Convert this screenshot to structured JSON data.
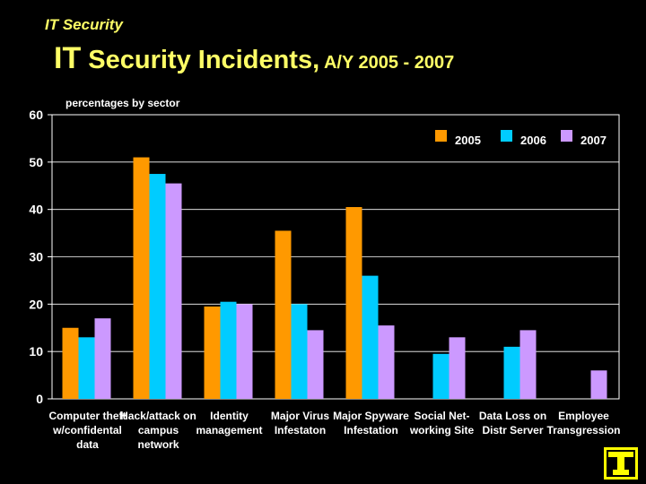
{
  "slide": {
    "kicker": "IT Security",
    "title_part1": "IT",
    "title_part2": " Security Incidents",
    "title_part3": ",",
    "title_part4": " A/Y 2005 - 2007"
  },
  "chart_data": {
    "type": "bar",
    "subtitle": "percentages by sector",
    "categories": [
      [
        "Computer theft",
        "w/confidental",
        "data"
      ],
      [
        "Hack/attack on",
        "campus",
        "network"
      ],
      [
        "Identity",
        "management"
      ],
      [
        "Major Virus",
        "Infestaton"
      ],
      [
        "Major Spyware",
        "Infestation"
      ],
      [
        "Social Net-",
        "working Site"
      ],
      [
        "Data Loss on",
        "Distr Server"
      ],
      [
        "Employee",
        "Transgression"
      ]
    ],
    "series": [
      {
        "name": "2005",
        "color": "#FF9900",
        "values": [
          15,
          51,
          19.5,
          35.5,
          40.5,
          null,
          null,
          null
        ]
      },
      {
        "name": "2006",
        "color": "#00CCFF",
        "values": [
          13,
          47.5,
          20.5,
          20,
          26,
          9.5,
          11,
          null
        ]
      },
      {
        "name": "2007",
        "color": "#CC99FF",
        "values": [
          17,
          45.5,
          20,
          14.5,
          15.5,
          13,
          14.5,
          6
        ]
      }
    ],
    "ylim": [
      0,
      60
    ],
    "yticks": [
      0,
      10,
      20,
      30,
      40,
      50,
      60
    ],
    "grid": true,
    "legend_position": "top-right",
    "plot_background": "#000000",
    "gridline_color": "#FFFFFF"
  },
  "logo": {
    "icon": "keyhole-shield-icon",
    "color": "#FFFF00"
  }
}
